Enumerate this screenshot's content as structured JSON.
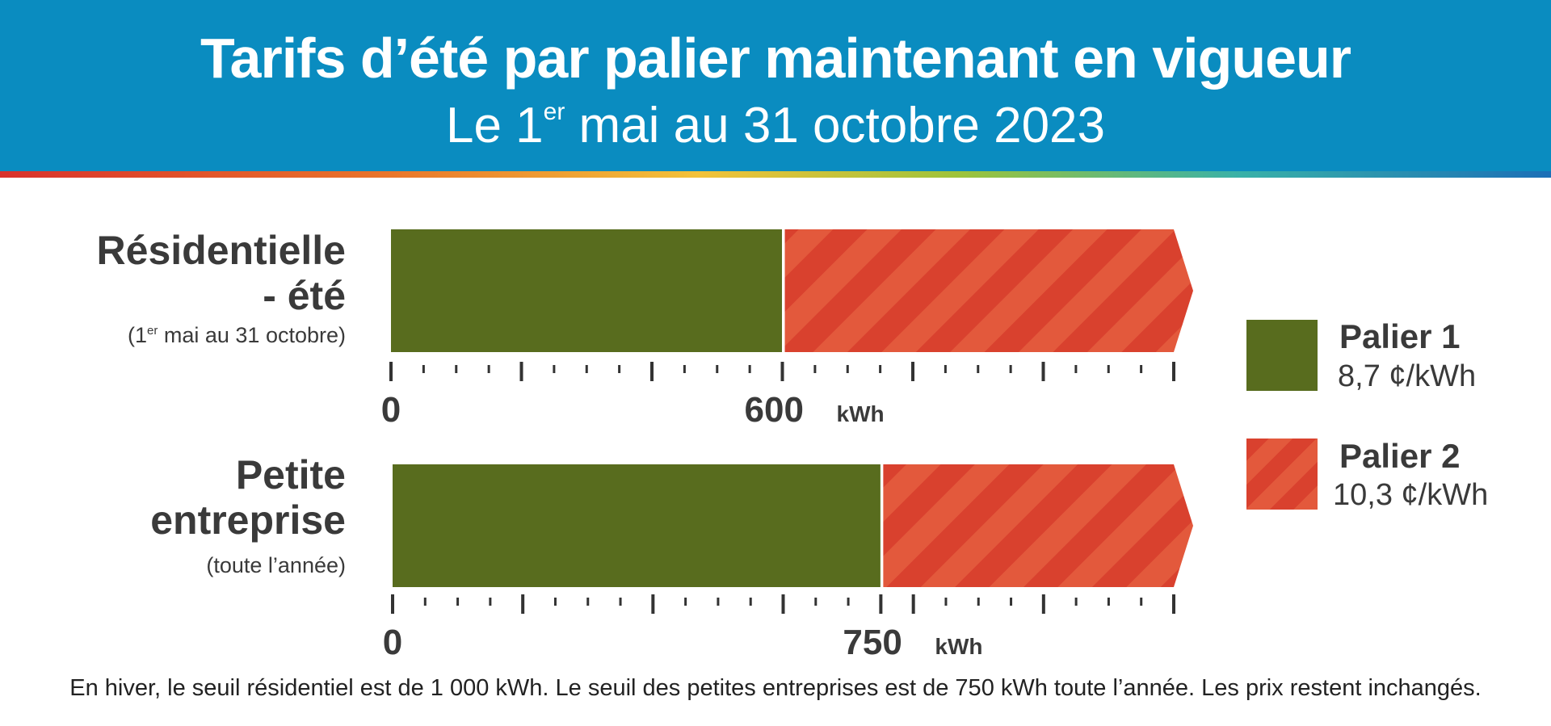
{
  "header": {
    "title": "Tarifs d’été par palier maintenant en vigueur",
    "subtitle_prefix": "Le 1",
    "subtitle_sup": "er",
    "subtitle_rest": " mai au 31 octobre 2023"
  },
  "colors": {
    "header_bg": "#0a8cc0",
    "tier1": "#586c1e",
    "tier2": "#d9412e",
    "tier2_stripe": "#e3593c"
  },
  "chart_data": [
    {
      "type": "bar",
      "title_line1": "Résidentielle",
      "title_line2": "- été",
      "sub_prefix": "(1",
      "sub_sup": "er",
      "sub_rest": " mai au 31 octobre)",
      "threshold": 600,
      "threshold_label": "600",
      "zero_label": "0",
      "unit": "kWh",
      "segments": [
        {
          "name": "Palier 1",
          "from": 0,
          "to": 600
        },
        {
          "name": "Palier 2",
          "from": 600,
          "to": 1200,
          "open_ended": true
        }
      ],
      "tick_count": 25,
      "xlim": [
        0,
        1200
      ]
    },
    {
      "type": "bar",
      "title_line1": "Petite",
      "title_line2": "entreprise",
      "sub_text": "(toute l’année)",
      "threshold": 750,
      "threshold_label": "750",
      "zero_label": "0",
      "unit": "kWh",
      "segments": [
        {
          "name": "Palier 1",
          "from": 0,
          "to": 750
        },
        {
          "name": "Palier 2",
          "from": 750,
          "to": 1200,
          "open_ended": true
        }
      ],
      "tick_count": 25,
      "xlim": [
        0,
        1200
      ]
    }
  ],
  "legend": [
    {
      "name": "Palier 1",
      "rate": "8,7 ¢/kWh"
    },
    {
      "name": "Palier 2",
      "rate": "10,3 ¢/kWh"
    }
  ],
  "note": "En hiver, le seuil résidentiel est de 1 000 kWh. Le seuil des petites entreprises est de 750 kWh toute l’année. Les prix restent inchangés."
}
